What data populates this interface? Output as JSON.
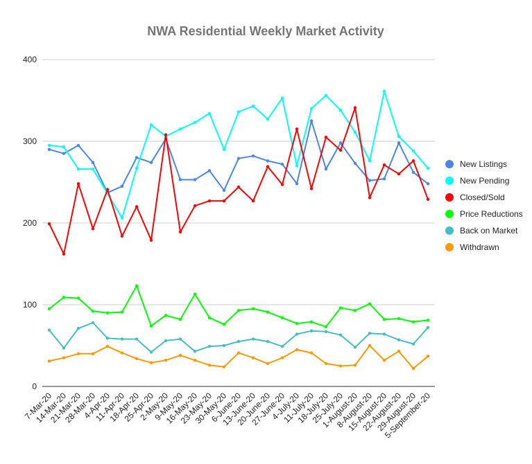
{
  "chart_data": {
    "type": "line",
    "title": "NWA Residential Weekly Market Activity",
    "xlabel": "",
    "ylabel": "",
    "ylim": [
      0,
      400
    ],
    "yticks": [
      0,
      100,
      200,
      300,
      400
    ],
    "grid": true,
    "legend_position": "right",
    "categories": [
      "7-Mar-20",
      "14-Mar-20",
      "21-Mar-20",
      "28-Mar-20",
      "4-Apr-20",
      "11-Apr-20",
      "18-Apr-20",
      "25-Apr-20",
      "2-May-20",
      "9-May-20",
      "16-May-20",
      "23-May-20",
      "30-May-20",
      "6-June-20",
      "13-June-20",
      "20-June-20",
      "27-June-20",
      "4-July-20",
      "11-July-20",
      "18-July-20",
      "25-July-20",
      "1-August-20",
      "8-August-20",
      "15-August-20",
      "22-August-20",
      "29-August-20",
      "5-September-20"
    ],
    "series": [
      {
        "name": "New Listings",
        "color": "#4a86e8",
        "values": [
          290,
          285,
          295,
          274,
          237,
          245,
          280,
          274,
          303,
          253,
          253,
          264,
          240,
          279,
          282,
          276,
          272,
          248,
          325,
          266,
          298,
          273,
          252,
          254,
          298,
          262,
          248
        ]
      },
      {
        "name": "New Pending",
        "color": "#00ffff",
        "values": [
          295,
          293,
          266,
          266,
          236,
          206,
          267,
          320,
          306,
          315,
          323,
          334,
          290,
          336,
          343,
          327,
          353,
          270,
          340,
          356,
          338,
          311,
          276,
          361,
          306,
          288,
          267
        ]
      },
      {
        "name": "Closed/Sold",
        "color": "#ff0000",
        "values": [
          199,
          162,
          248,
          193,
          241,
          184,
          220,
          179,
          308,
          189,
          221,
          227,
          227,
          244,
          227,
          269,
          247,
          315,
          242,
          305,
          289,
          341,
          231,
          271,
          260,
          276,
          229
        ]
      },
      {
        "name": "Price Reductions",
        "color": "#00ff00",
        "values": [
          95,
          109,
          108,
          92,
          90,
          91,
          123,
          74,
          87,
          82,
          113,
          84,
          76,
          93,
          95,
          91,
          84,
          77,
          79,
          73,
          96,
          93,
          101,
          82,
          83,
          79,
          81
        ]
      },
      {
        "name": "Back on Market",
        "color": "#46bdc6",
        "values": [
          69,
          47,
          71,
          78,
          59,
          58,
          58,
          42,
          56,
          58,
          43,
          49,
          50,
          55,
          58,
          55,
          49,
          64,
          68,
          67,
          63,
          48,
          65,
          64,
          57,
          52,
          72
        ]
      },
      {
        "name": "Withdrawn",
        "color": "#ff9900",
        "values": [
          31,
          35,
          40,
          40,
          49,
          41,
          34,
          29,
          32,
          38,
          32,
          26,
          24,
          41,
          35,
          28,
          35,
          45,
          41,
          28,
          25,
          26,
          50,
          32,
          43,
          22,
          37
        ]
      }
    ]
  }
}
